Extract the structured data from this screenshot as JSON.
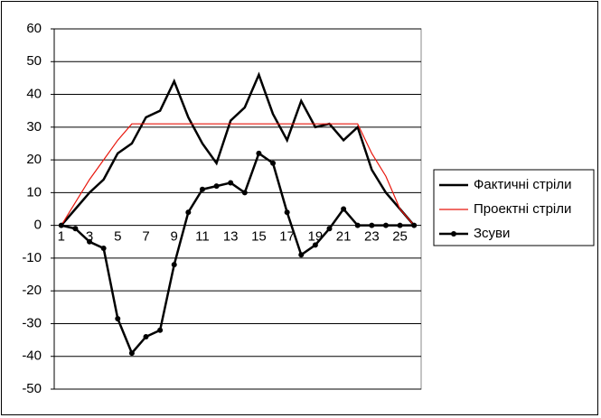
{
  "chart_data": {
    "type": "line",
    "categories": [
      "1",
      null,
      "3",
      null,
      "5",
      null,
      "7",
      null,
      "9",
      null,
      "11",
      null,
      "13",
      null,
      "15",
      null,
      "17",
      null,
      "19",
      null,
      "21",
      null,
      "23",
      null,
      "25",
      null
    ],
    "series": [
      {
        "name": "Фактичні стріли",
        "color": "#000000",
        "markers": false,
        "values": [
          0,
          5,
          10,
          14,
          22,
          25,
          33,
          35,
          44,
          33,
          25,
          19,
          32,
          36,
          46,
          34,
          26,
          38,
          30,
          31,
          26,
          30,
          17,
          10,
          5,
          0
        ]
      },
      {
        "name": "Проектні стріли",
        "color": "#e8160c",
        "markers": false,
        "values": [
          0,
          7,
          14,
          20,
          26,
          31,
          31,
          31,
          31,
          31,
          31,
          31,
          31,
          31,
          31,
          31,
          31,
          31,
          31,
          31,
          31,
          31,
          22,
          15,
          5,
          0
        ]
      },
      {
        "name": "Зсуви",
        "color": "#000000",
        "markers": true,
        "values": [
          0,
          -1,
          -5,
          -7,
          -28.5,
          -39,
          -34,
          -32,
          -12,
          4,
          11,
          12,
          13,
          10,
          22,
          19,
          4,
          -9,
          -6,
          -1,
          5,
          0,
          0,
          0,
          0,
          0
        ]
      }
    ],
    "ylim": [
      -50,
      60
    ],
    "yticks": [
      -50,
      -40,
      -30,
      -20,
      -10,
      0,
      10,
      20,
      30,
      40,
      50,
      60
    ],
    "grid": true,
    "legend": "right"
  }
}
